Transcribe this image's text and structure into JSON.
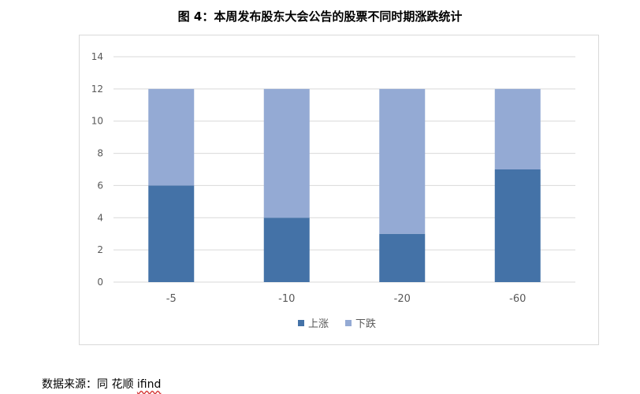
{
  "title": "图 4：本周发布股东大会公告的股票不同时期涨跌统计",
  "source": {
    "prefix": "数据来源：同 花顺 ",
    "brand": "ifind"
  },
  "colors": {
    "up": "#4472a7",
    "down": "#94aad4",
    "grid": "#d9d9d9",
    "text": "#595959"
  },
  "chart_data": {
    "type": "bar",
    "stacked": true,
    "categories": [
      "-5",
      "-10",
      "-20",
      "-60"
    ],
    "series": [
      {
        "name": "上涨",
        "values": [
          6,
          4,
          3,
          7
        ]
      },
      {
        "name": "下跌",
        "values": [
          6,
          8,
          9,
          5
        ]
      }
    ],
    "ylim": [
      0,
      14
    ],
    "yticks": [
      0,
      2,
      4,
      6,
      8,
      10,
      12,
      14
    ],
    "grid": true,
    "legend": "bottom"
  }
}
